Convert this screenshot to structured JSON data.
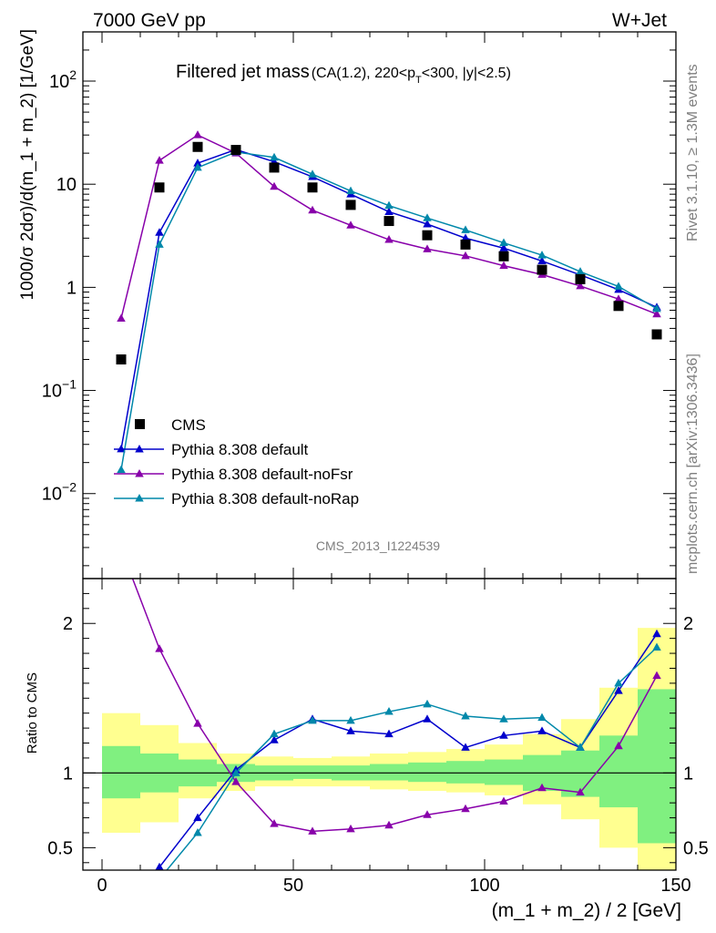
{
  "header": {
    "left": "7000 GeV pp",
    "right": "W+Jet"
  },
  "title_main": "Filtered jet mass",
  "title_sub_a": "(CA(1.2), 220<p",
  "title_sub_sub": "T",
  "title_sub_b": "<300, |y|<2.5)",
  "side_text_top": "Rivet 3.1.10, ≥ 1.3M events",
  "side_text_bottom": "mcplots.cern.ch [arXiv:1306.3436]",
  "watermark": "CMS_2013_I1224539",
  "chart_data": {
    "type": "line",
    "xlabel": "(m_1 + m_2) / 2 [GeV]",
    "xlim": [
      -5,
      150
    ],
    "x_ticks": [
      0,
      50,
      100,
      150
    ],
    "top": {
      "ylabel": "1000/σ 2dσ)/d(m_1 + m_2) [1/GeV]",
      "yscale": "log",
      "ylim": [
        0.0015,
        300
      ],
      "y_ticks": [
        {
          "value": 0.01,
          "base": "10",
          "exp": "−2"
        },
        {
          "value": 0.1,
          "base": "10",
          "exp": "−1"
        },
        {
          "value": 1,
          "base": "1",
          "exp": ""
        },
        {
          "value": 10,
          "base": "10",
          "exp": ""
        },
        {
          "value": 100,
          "base": "10",
          "exp": "2"
        }
      ]
    },
    "bottom": {
      "ylabel": "Ratio to CMS",
      "ylim": [
        0.35,
        2.3
      ],
      "y_ticks": [
        0.5,
        1,
        2
      ],
      "y_tick_labels": [
        "0.5",
        "1",
        "2"
      ]
    },
    "x": [
      5,
      15,
      25,
      35,
      45,
      55,
      65,
      75,
      85,
      95,
      105,
      115,
      125,
      135,
      145
    ],
    "bin_edges": [
      0,
      10,
      20,
      30,
      40,
      50,
      60,
      70,
      80,
      90,
      100,
      110,
      120,
      130,
      140,
      150
    ],
    "data": {
      "name": "CMS",
      "color": "#000000",
      "values": [
        0.2,
        9.3,
        23,
        21.5,
        14.5,
        9.3,
        6.3,
        4.4,
        3.2,
        2.6,
        2.0,
        1.48,
        1.2,
        0.66,
        0.35
      ]
    },
    "bands": {
      "inner": [
        [
          0.83,
          1.18
        ],
        [
          0.87,
          1.13
        ],
        [
          0.91,
          1.09
        ],
        [
          0.94,
          1.06
        ],
        [
          0.95,
          1.05
        ],
        [
          0.96,
          1.05
        ],
        [
          0.95,
          1.05
        ],
        [
          0.95,
          1.06
        ],
        [
          0.94,
          1.07
        ],
        [
          0.93,
          1.08
        ],
        [
          0.92,
          1.09
        ],
        [
          0.88,
          1.12
        ],
        [
          0.84,
          1.15
        ],
        [
          0.77,
          1.25
        ],
        [
          0.53,
          1.56
        ]
      ],
      "outer": [
        [
          0.6,
          1.4
        ],
        [
          0.67,
          1.32
        ],
        [
          0.83,
          1.2
        ],
        [
          0.88,
          1.13
        ],
        [
          0.91,
          1.11
        ],
        [
          0.91,
          1.1
        ],
        [
          0.91,
          1.11
        ],
        [
          0.89,
          1.13
        ],
        [
          0.88,
          1.14
        ],
        [
          0.87,
          1.16
        ],
        [
          0.85,
          1.19
        ],
        [
          0.79,
          1.26
        ],
        [
          0.69,
          1.36
        ],
        [
          0.5,
          1.57
        ],
        [
          0.35,
          1.97
        ]
      ],
      "inner_color": "#80f080",
      "outer_color": "#ffff90"
    },
    "series": [
      {
        "name": "Pythia 8.308 default",
        "color": "#0000cc",
        "values": [
          0.027,
          3.4,
          16,
          21.7,
          16.5,
          11.8,
          8.0,
          5.4,
          4.1,
          3.0,
          2.4,
          1.8,
          1.32,
          0.95,
          0.64
        ],
        "ratio": [
          0.14,
          0.37,
          0.7,
          1.02,
          1.22,
          1.36,
          1.28,
          1.26,
          1.36,
          1.17,
          1.25,
          1.28,
          1.17,
          1.55,
          1.93
        ]
      },
      {
        "name": "Pythia 8.308 default-noFsr",
        "color": "#8800aa",
        "values": [
          0.5,
          17,
          30,
          20,
          9.5,
          5.6,
          4.0,
          2.9,
          2.35,
          2.02,
          1.62,
          1.33,
          1.03,
          0.77,
          0.55
        ],
        "ratio": [
          2.5,
          1.83,
          1.33,
          0.94,
          0.66,
          0.61,
          0.625,
          0.65,
          0.72,
          0.76,
          0.81,
          0.9,
          0.87,
          1.18,
          1.65
        ]
      },
      {
        "name": "Pythia 8.308 default-noRap",
        "color": "#0088aa",
        "values": [
          0.017,
          2.6,
          14.5,
          20.5,
          18.2,
          12.5,
          8.6,
          6.2,
          4.7,
          3.6,
          2.7,
          2.05,
          1.42,
          1.02,
          0.62
        ],
        "ratio": [
          0.085,
          0.29,
          0.6,
          1.0,
          1.26,
          1.35,
          1.35,
          1.41,
          1.46,
          1.38,
          1.36,
          1.37,
          1.17,
          1.6,
          1.84
        ]
      }
    ]
  }
}
